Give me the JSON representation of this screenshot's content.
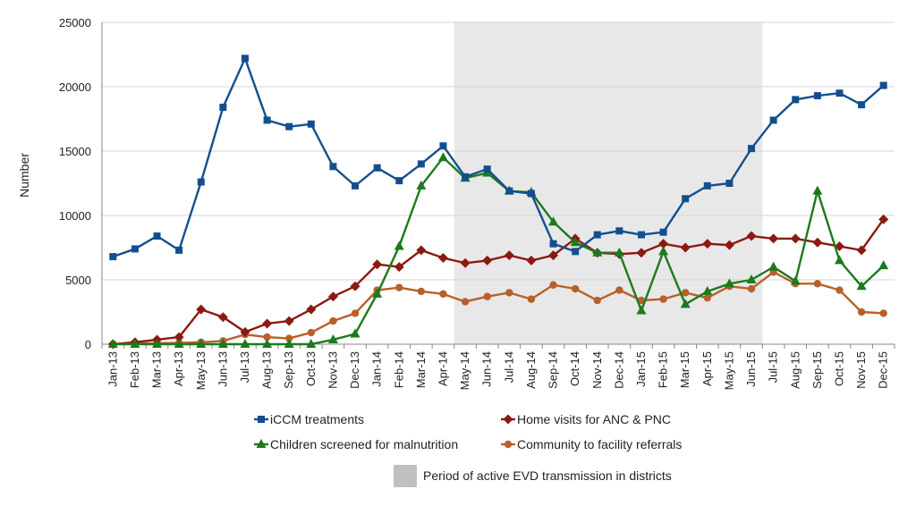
{
  "chart_data": {
    "type": "line",
    "title": "",
    "xlabel": "",
    "ylabel": "Number",
    "ylim": [
      0,
      25000
    ],
    "yticks": [
      0,
      5000,
      10000,
      15000,
      20000,
      25000
    ],
    "grid": "horizontal",
    "legend_position": "bottom",
    "categories": [
      "Jan-13",
      "Feb-13",
      "Mar-13",
      "Apr-13",
      "May-13",
      "Jun-13",
      "Jul-13",
      "Aug-13",
      "Sep-13",
      "Oct-13",
      "Nov-13",
      "Dec-13",
      "Jan-14",
      "Feb-14",
      "Mar-14",
      "Apr-14",
      "May-14",
      "Jun-14",
      "Jul-14",
      "Aug-14",
      "Sep-14",
      "Oct-14",
      "Nov-14",
      "Dec-14",
      "Jan-15",
      "Feb-15",
      "Mar-15",
      "Apr-15",
      "May-15",
      "Jun-15",
      "Jul-15",
      "Aug-15",
      "Sep-15",
      "Oct-15",
      "Nov-15",
      "Dec-15"
    ],
    "shaded_period": {
      "start": "May-14",
      "end": "Jul-15",
      "label": "Period of active EVD transmission in districts",
      "color": "#e8e8e8"
    },
    "series": [
      {
        "name": "iCCM treatments",
        "color": "#134f8f",
        "marker": "square",
        "values": [
          6800,
          7400,
          8400,
          7300,
          12600,
          18400,
          22200,
          17400,
          16900,
          17100,
          13800,
          12300,
          13700,
          12700,
          14000,
          15400,
          13000,
          13600,
          11900,
          11700,
          7800,
          7200,
          8500,
          8800,
          8500,
          8700,
          11300,
          12300,
          12500,
          15200,
          17400,
          19000,
          19300,
          19500,
          18600,
          20100
        ]
      },
      {
        "name": "Home visits for ANC & PNC",
        "color": "#8b1a12",
        "marker": "diamond",
        "values": [
          0,
          150,
          350,
          550,
          2700,
          2100,
          950,
          1600,
          1800,
          2700,
          3700,
          4500,
          6200,
          6000,
          7300,
          6700,
          6300,
          6500,
          6900,
          6500,
          6900,
          8200,
          7100,
          7000,
          7100,
          7800,
          7500,
          7800,
          7700,
          8400,
          8200,
          8200,
          7900,
          7600,
          7300,
          9700
        ]
      },
      {
        "name": "Children screened for malnutrition",
        "color": "#1c7a1c",
        "marker": "triangle",
        "values": [
          0,
          0,
          0,
          0,
          0,
          0,
          0,
          0,
          0,
          0,
          350,
          800,
          3900,
          7600,
          12300,
          14500,
          12900,
          13300,
          11900,
          11800,
          9500,
          7900,
          7100,
          7100,
          2600,
          7200,
          3100,
          4100,
          4700,
          5000,
          6000,
          4900,
          11900,
          6500,
          4500,
          6100
        ]
      },
      {
        "name": "Community to facility referrals",
        "color": "#b8602a",
        "marker": "circle",
        "values": [
          0,
          50,
          80,
          100,
          150,
          250,
          750,
          550,
          450,
          900,
          1800,
          2400,
          4200,
          4400,
          4100,
          3900,
          3300,
          3700,
          4000,
          3500,
          4600,
          4300,
          3400,
          4200,
          3400,
          3500,
          4000,
          3600,
          4500,
          4300,
          5600,
          4700,
          4700,
          4200,
          2500,
          2400
        ]
      }
    ]
  }
}
